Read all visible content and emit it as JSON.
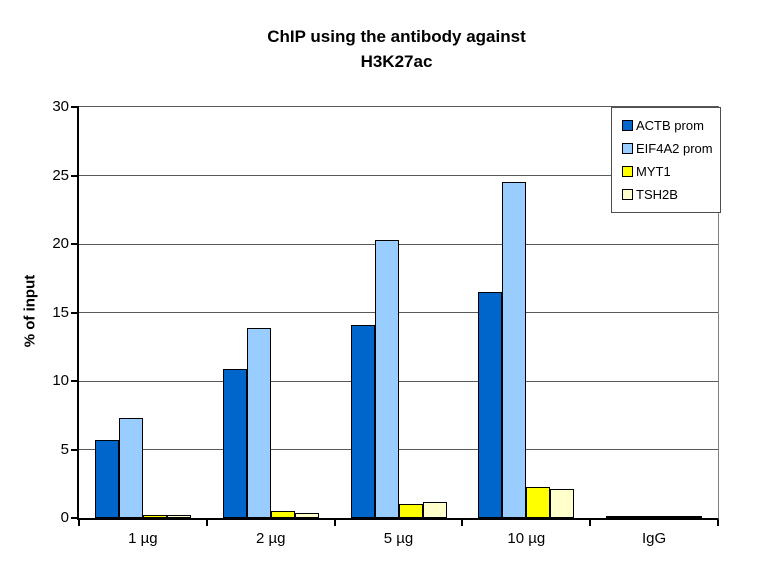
{
  "figure": {
    "title": "ChIP using the antibody against\nH3K27ac",
    "ylabel": "% of input"
  },
  "chart_data": {
    "type": "bar",
    "title": "ChIP using the antibody against H3K27ac",
    "xlabel": "",
    "ylabel": "% of input",
    "categories": [
      "1 µg",
      "2 µg",
      "5 µg",
      "10 µg",
      "IgG"
    ],
    "series": [
      {
        "name": "ACTB prom",
        "color": "#0066CC",
        "values": [
          5.7,
          10.9,
          14.1,
          16.5,
          0.15
        ]
      },
      {
        "name": "EIF4A2 prom",
        "color": "#99CCFF",
        "values": [
          7.3,
          13.9,
          20.3,
          24.5,
          0.05
        ]
      },
      {
        "name": "MYT1",
        "color": "#FFFF00",
        "values": [
          0.2,
          0.5,
          1.0,
          2.3,
          0.05
        ]
      },
      {
        "name": "TSH2B",
        "color": "#FFFFCC",
        "values": [
          0.25,
          0.35,
          1.2,
          2.15,
          0.05
        ]
      }
    ],
    "ylim": [
      0,
      30
    ],
    "yticks": [
      0,
      5,
      10,
      15,
      20,
      25,
      30
    ],
    "grid": "horizontal",
    "gridline_color": "#595959",
    "axis_color": "#000000",
    "bar_outline_color": "#000000",
    "legend_position": "top-right"
  }
}
